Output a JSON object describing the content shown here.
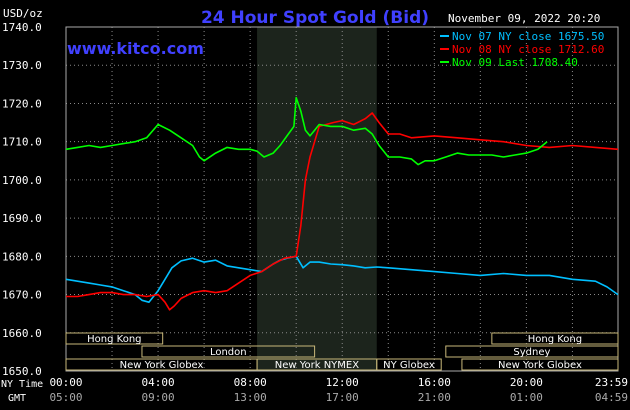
{
  "chart_data": {
    "type": "line",
    "title": "24 Hour Spot Gold (Bid)",
    "watermark": "www.kitco.com",
    "ylabel": "USD/oz",
    "timestamp": "November 09, 2022 20:20",
    "ylim": [
      1650,
      1740
    ],
    "yticks": [
      "1740.0",
      "1730.0",
      "1720.0",
      "1710.0",
      "1700.0",
      "1690.0",
      "1680.0",
      "1670.0",
      "1660.0",
      "1650.0"
    ],
    "xticks_ny": [
      "00:00",
      "04:00",
      "08:00",
      "12:00",
      "16:00",
      "20:00",
      "23:59"
    ],
    "xticks_gmt": [
      "05:00",
      "09:00",
      "13:00",
      "17:00",
      "21:00",
      "01:00",
      "04:59"
    ],
    "row_label_ny": "NY Time",
    "row_label_gmt": "GMT",
    "grid": true,
    "legend_position": "top-right",
    "colors": {
      "series0": "#00bfff",
      "series1": "#ff0000",
      "series2": "#00ff00",
      "title": "#4040ff",
      "grid": "#8a8a8a",
      "highlight": "#1c241c"
    },
    "series": [
      {
        "name": "Nov 07 NY close 1675.50",
        "color": "#00bfff",
        "x": [
          0,
          0.5,
          1,
          1.5,
          2,
          2.5,
          3,
          3.3,
          3.6,
          4,
          4.3,
          4.6,
          5,
          5.5,
          6,
          6.5,
          7,
          7.5,
          8,
          8.5,
          9,
          9.3,
          9.6,
          10,
          10.3,
          10.6,
          11,
          11.5,
          12,
          12.5,
          13,
          13.5,
          14,
          15,
          16,
          17,
          18,
          19,
          20,
          21,
          22,
          23,
          23.5,
          23.98
        ],
        "y": [
          1674,
          1673.5,
          1673,
          1672.5,
          1672,
          1671,
          1670,
          1668.5,
          1668,
          1671,
          1674,
          1677,
          1678.8,
          1679.5,
          1678.5,
          1679,
          1677.5,
          1677,
          1676.5,
          1676,
          1678,
          1679,
          1679.5,
          1680,
          1677,
          1678.5,
          1678.5,
          1678,
          1677.8,
          1677.5,
          1677,
          1677.2,
          1677,
          1676.5,
          1676,
          1675.5,
          1675,
          1675.5,
          1675,
          1675,
          1674,
          1673.5,
          1672,
          1670
        ]
      },
      {
        "name": "Nov 08 NY close 1712.60",
        "color": "#ff0000",
        "x": [
          0,
          0.5,
          1,
          1.5,
          2,
          2.5,
          3,
          3.5,
          4,
          4.3,
          4.5,
          4.7,
          5,
          5.5,
          6,
          6.5,
          7,
          7.5,
          8,
          8.5,
          9,
          9.5,
          10,
          10.2,
          10.4,
          10.6,
          10.8,
          11,
          11.3,
          11.6,
          12,
          12.5,
          13,
          13.3,
          13.6,
          14,
          14.5,
          15,
          16,
          17,
          18,
          19,
          20,
          21,
          22,
          23,
          23.98
        ],
        "y": [
          1669.5,
          1669.5,
          1670,
          1670.5,
          1670.5,
          1670,
          1670,
          1669.5,
          1670,
          1668,
          1666,
          1667,
          1669,
          1670.5,
          1671,
          1670.5,
          1671,
          1673,
          1675,
          1676,
          1678,
          1679.5,
          1680,
          1688,
          1700,
          1706,
          1710,
          1714,
          1714.5,
          1715,
          1715.5,
          1714.5,
          1716,
          1717.5,
          1715,
          1712,
          1712,
          1711,
          1711.5,
          1711,
          1710.5,
          1710,
          1709,
          1708.5,
          1709,
          1708.5,
          1708
        ]
      },
      {
        "name": "Nov 09 Last 1708.40",
        "color": "#00ff00",
        "x": [
          0,
          0.5,
          1,
          1.5,
          2,
          2.5,
          3,
          3.5,
          4,
          4.5,
          5,
          5.5,
          5.8,
          6,
          6.5,
          7,
          7.5,
          8,
          8.3,
          8.6,
          9,
          9.3,
          9.6,
          9.9,
          10,
          10.2,
          10.4,
          10.6,
          10.8,
          11,
          11.5,
          12,
          12.5,
          13,
          13.3,
          13.6,
          14,
          14.5,
          15,
          15.3,
          15.6,
          16,
          16.5,
          17,
          17.5,
          18,
          18.5,
          19,
          19.5,
          20,
          20.5,
          20.9
        ],
        "y": [
          1708,
          1708.5,
          1709,
          1708.5,
          1709,
          1709.5,
          1710,
          1711,
          1714.5,
          1713,
          1711,
          1709,
          1706,
          1705,
          1707,
          1708.5,
          1708,
          1708,
          1707.5,
          1706,
          1707,
          1709,
          1711.5,
          1714,
          1721.5,
          1718,
          1713,
          1711.5,
          1713,
          1714.5,
          1714,
          1714,
          1713,
          1713.5,
          1712,
          1709,
          1706,
          1706,
          1705.5,
          1704,
          1705,
          1705,
          1706,
          1707,
          1706.5,
          1706.5,
          1706.5,
          1706,
          1706.5,
          1707,
          1708,
          1710
        ]
      }
    ],
    "session_bars": [
      {
        "label": "Hong Kong",
        "row": 0,
        "start": 0,
        "end": 4.2
      },
      {
        "label": "Hong Kong",
        "row": 0,
        "start": 18.5,
        "end": 23.98
      },
      {
        "label": "London",
        "row": 1,
        "start": 3.3,
        "end": 10.8
      },
      {
        "label": "Sydney",
        "row": 1,
        "start": 16.5,
        "end": 23.98
      },
      {
        "label": "New York Globex",
        "row": 2,
        "start": 0,
        "end": 8.3
      },
      {
        "label": "New York NYMEX",
        "row": 2,
        "start": 8.3,
        "end": 13.5
      },
      {
        "label": "NY Globex",
        "row": 2,
        "start": 13.5,
        "end": 16.3
      },
      {
        "label": "New York Globex",
        "row": 2,
        "start": 17.2,
        "end": 23.98
      }
    ],
    "highlight_range": [
      8.3,
      13.5
    ]
  }
}
